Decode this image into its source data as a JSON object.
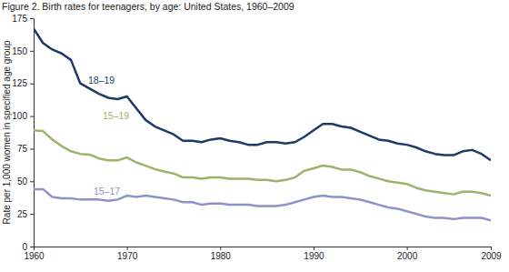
{
  "chart_data": {
    "type": "line",
    "title": "Figure 2. Birth rates for teenagers, by age: United States, 1960–2009",
    "y_label": "Rate per 1,000 women in specified age group",
    "x": [
      1960,
      1961,
      1962,
      1963,
      1964,
      1965,
      1966,
      1967,
      1968,
      1969,
      1970,
      1971,
      1972,
      1973,
      1974,
      1975,
      1976,
      1977,
      1978,
      1979,
      1980,
      1981,
      1982,
      1983,
      1984,
      1985,
      1986,
      1987,
      1988,
      1989,
      1990,
      1991,
      1992,
      1993,
      1994,
      1995,
      1996,
      1997,
      1998,
      1999,
      2000,
      2001,
      2002,
      2003,
      2004,
      2005,
      2006,
      2007,
      2008,
      2009
    ],
    "xlim": [
      1960,
      2009
    ],
    "xticks": [
      1960,
      1970,
      1980,
      1990,
      2000,
      2009
    ],
    "ylim": [
      0,
      175
    ],
    "yticks": [
      0,
      25,
      50,
      75,
      100,
      125,
      150,
      175
    ],
    "grid": false,
    "series": [
      {
        "name": "18–19",
        "color": "#1d3a6b",
        "values": [
          167,
          156,
          151,
          148,
          143,
          125,
          121,
          117,
          114,
          113,
          115,
          106,
          97,
          92,
          89,
          86,
          81,
          81,
          80,
          82,
          83,
          81,
          80,
          78,
          78,
          80,
          80,
          79,
          80,
          84,
          89,
          94,
          94,
          92,
          91,
          88,
          85,
          82,
          81,
          79,
          78,
          76,
          73,
          71,
          70,
          70,
          73,
          74,
          71,
          66
        ]
      },
      {
        "name": "15–19",
        "color": "#9cb46a",
        "values": [
          89,
          88.5,
          82,
          77,
          73,
          71,
          70.5,
          67.5,
          66,
          66,
          68.3,
          64.5,
          62,
          59.3,
          57.5,
          56,
          53,
          53,
          52,
          53,
          53,
          52,
          52,
          52,
          51,
          51,
          50,
          51,
          53,
          58,
          60,
          62,
          61,
          59,
          59,
          57,
          54,
          52,
          50,
          49,
          48,
          45,
          43,
          42,
          41,
          40,
          42,
          42,
          41,
          39
        ]
      },
      {
        "name": "15–17",
        "color": "#8d93c9",
        "values": [
          44,
          44,
          38,
          37,
          37,
          36,
          36,
          36,
          35,
          36,
          39,
          38,
          39,
          38,
          37,
          36,
          34,
          34,
          32,
          33,
          33,
          32,
          32,
          32,
          31,
          31,
          31,
          32,
          34,
          36,
          38,
          39,
          38,
          38,
          37,
          36,
          34,
          32,
          30,
          29,
          27,
          25,
          23,
          22,
          22,
          21,
          22,
          22,
          22,
          20
        ]
      }
    ]
  }
}
